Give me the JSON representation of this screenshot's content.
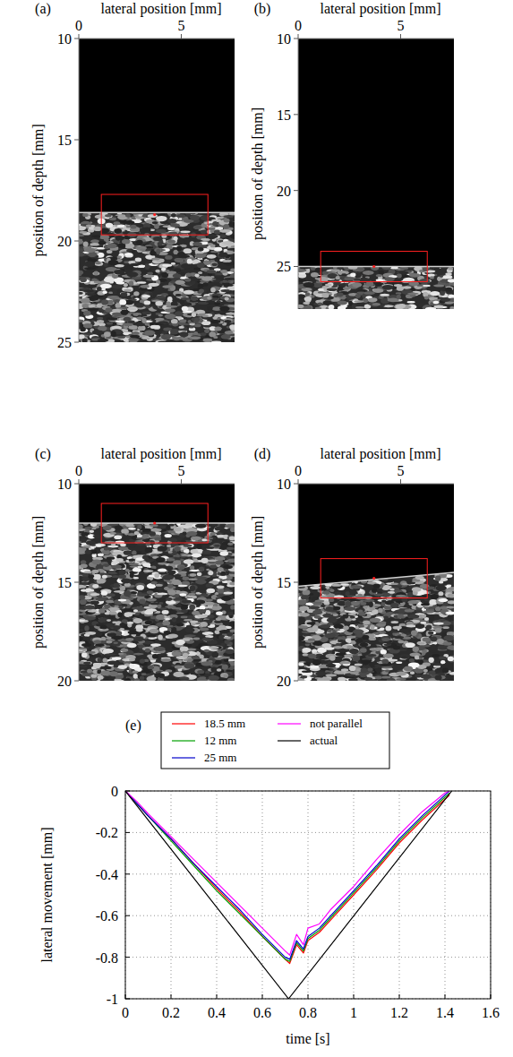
{
  "chart_data": [
    {
      "type": "image",
      "panel": "(a)",
      "xlabel": "lateral position [mm]",
      "ylabel": "position of depth [mm]",
      "xlim": [
        0,
        7.6
      ],
      "ylim": [
        10,
        25
      ],
      "xticks": [
        0,
        5
      ],
      "yticks": [
        10,
        15,
        20,
        25
      ],
      "surface": [
        18.6,
        18.6
      ],
      "roi": {
        "x": [
          1.1,
          6.3
        ],
        "y": [
          17.7,
          19.7
        ]
      },
      "roi_center": [
        3.7,
        18.7
      ]
    },
    {
      "type": "image",
      "panel": "(b)",
      "xlabel": "lateral position [mm]",
      "ylabel": "position of depth [mm]",
      "xlim": [
        0,
        7.6
      ],
      "ylim": [
        10,
        27.8
      ],
      "xticks": [
        0,
        5
      ],
      "yticks": [
        10,
        15,
        20,
        25
      ],
      "surface": [
        25.0,
        25.0
      ],
      "roi": {
        "x": [
          1.1,
          6.3
        ],
        "y": [
          24.0,
          26.0
        ]
      },
      "roi_center": [
        3.7,
        25.0
      ]
    },
    {
      "type": "image",
      "panel": "(c)",
      "xlabel": "lateral position [mm]",
      "ylabel": "position of depth [mm]",
      "xlim": [
        0,
        7.6
      ],
      "ylim": [
        10,
        20
      ],
      "xticks": [
        0,
        5
      ],
      "yticks": [
        10,
        15,
        20
      ],
      "surface": [
        12.0,
        12.0
      ],
      "roi": {
        "x": [
          1.1,
          6.3
        ],
        "y": [
          11.0,
          13.0
        ]
      },
      "roi_center": [
        3.7,
        12.0
      ]
    },
    {
      "type": "image",
      "panel": "(d)",
      "xlabel": "lateral position [mm]",
      "ylabel": "position of depth [mm]",
      "xlim": [
        0,
        7.6
      ],
      "ylim": [
        10,
        20
      ],
      "xticks": [
        0,
        5
      ],
      "yticks": [
        10,
        15,
        20
      ],
      "surface": [
        15.2,
        14.5
      ],
      "roi": {
        "x": [
          1.1,
          6.3
        ],
        "y": [
          13.8,
          15.8
        ]
      },
      "roi_center": [
        3.7,
        14.8
      ]
    },
    {
      "type": "line",
      "panel": "(e)",
      "xlabel": "time [s]",
      "ylabel": "lateral movement [mm]",
      "xlim": [
        0,
        1.6
      ],
      "ylim": [
        -1,
        0
      ],
      "xticks": [
        0,
        0.2,
        0.4,
        0.6,
        0.8,
        1,
        1.2,
        1.4,
        1.6
      ],
      "yticks": [
        -1,
        -0.8,
        -0.6,
        -0.4,
        -0.2,
        0
      ],
      "grid": true,
      "legend": "top",
      "x": [
        0,
        0.05,
        0.1,
        0.2,
        0.3,
        0.4,
        0.5,
        0.6,
        0.7,
        0.72,
        0.75,
        0.78,
        0.8,
        0.85,
        0.9,
        1.0,
        1.1,
        1.2,
        1.3,
        1.4,
        1.42
      ],
      "series": [
        {
          "name": "18.5 mm",
          "color": "#ff0000",
          "values": [
            0,
            -0.06,
            -0.12,
            -0.23,
            -0.35,
            -0.47,
            -0.58,
            -0.7,
            -0.81,
            -0.83,
            -0.74,
            -0.78,
            -0.72,
            -0.68,
            -0.62,
            -0.5,
            -0.38,
            -0.25,
            -0.14,
            -0.04,
            -0.02
          ]
        },
        {
          "name": "12 mm",
          "color": "#00a000",
          "values": [
            0,
            -0.06,
            -0.12,
            -0.24,
            -0.36,
            -0.48,
            -0.59,
            -0.7,
            -0.81,
            -0.82,
            -0.73,
            -0.77,
            -0.71,
            -0.67,
            -0.61,
            -0.49,
            -0.37,
            -0.24,
            -0.13,
            -0.03,
            -0.01
          ]
        },
        {
          "name": "25 mm",
          "color": "#0000cc",
          "values": [
            0,
            -0.06,
            -0.12,
            -0.23,
            -0.35,
            -0.46,
            -0.57,
            -0.69,
            -0.8,
            -0.81,
            -0.72,
            -0.76,
            -0.7,
            -0.66,
            -0.6,
            -0.48,
            -0.36,
            -0.23,
            -0.12,
            -0.02,
            0
          ]
        },
        {
          "name": "not parallel",
          "color": "#ff00ff",
          "values": [
            0,
            -0.05,
            -0.11,
            -0.22,
            -0.33,
            -0.44,
            -0.55,
            -0.66,
            -0.77,
            -0.79,
            -0.69,
            -0.74,
            -0.66,
            -0.64,
            -0.57,
            -0.46,
            -0.33,
            -0.21,
            -0.1,
            -0.01,
            0
          ]
        },
        {
          "name": "actual",
          "color": "#000000",
          "x": [
            0,
            0.715,
            1.43
          ],
          "values": [
            0,
            -1,
            0
          ]
        }
      ]
    }
  ]
}
